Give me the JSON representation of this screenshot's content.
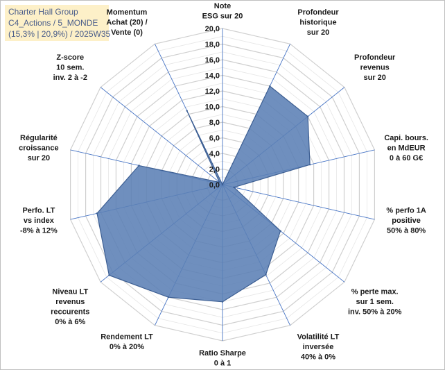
{
  "header": {
    "line1": "Charter Hall Group",
    "line2": "C4_Actions / 5_MONDE",
    "line3": "(15,3% | 20,9%) / 2025W35"
  },
  "chart_data": {
    "type": "radar",
    "categories": [
      [
        "Note",
        "ESG sur 20"
      ],
      [
        "Profondeur",
        "historique",
        "sur 20"
      ],
      [
        "Profondeur",
        "revenus",
        "sur 20"
      ],
      [
        "Capi. bours.",
        "en MdEUR",
        "0 à 60 G€"
      ],
      [
        "% perfo 1A",
        "positive",
        "50% à 80%"
      ],
      [
        "% perte max.",
        "sur 1 sem.",
        "inv. 50% à 20%"
      ],
      [
        "Volatilité LT",
        "inversée",
        "40% à 0%"
      ],
      [
        "Ratio Sharpe",
        "0 à 1"
      ],
      [
        "Rendement LT",
        "0% à 20%"
      ],
      [
        "Niveau LT",
        "revenus",
        "reccurents",
        "0% à 6%"
      ],
      [
        "Perfo. LT",
        "vs index",
        "-8% à 12%"
      ],
      [
        "Régularité",
        "croissance",
        "sur 20"
      ],
      [
        "Z-score",
        "10 sem.",
        "inv. 2 à -2"
      ],
      [
        "Momentum",
        "Achat (20) /",
        "Vente (0)"
      ]
    ],
    "series": [
      {
        "values": [
          0.0,
          14.0,
          14.0,
          11.5,
          1.5,
          9.5,
          12.8,
          15.0,
          16.0,
          18.6,
          16.5,
          11.0,
          0.5,
          10.5
        ]
      }
    ],
    "rlim": [
      0,
      20
    ],
    "ticks": [
      "0,0",
      "2,0",
      "4,0",
      "6,0",
      "8,0",
      "10,0",
      "12,0",
      "14,0",
      "16,0",
      "18,0",
      "20,0"
    ],
    "colors": {
      "fill": "#5b7fb5",
      "stroke": "#3d5f93",
      "grid": "#d9d9d9",
      "axis": "#4472c4"
    }
  }
}
